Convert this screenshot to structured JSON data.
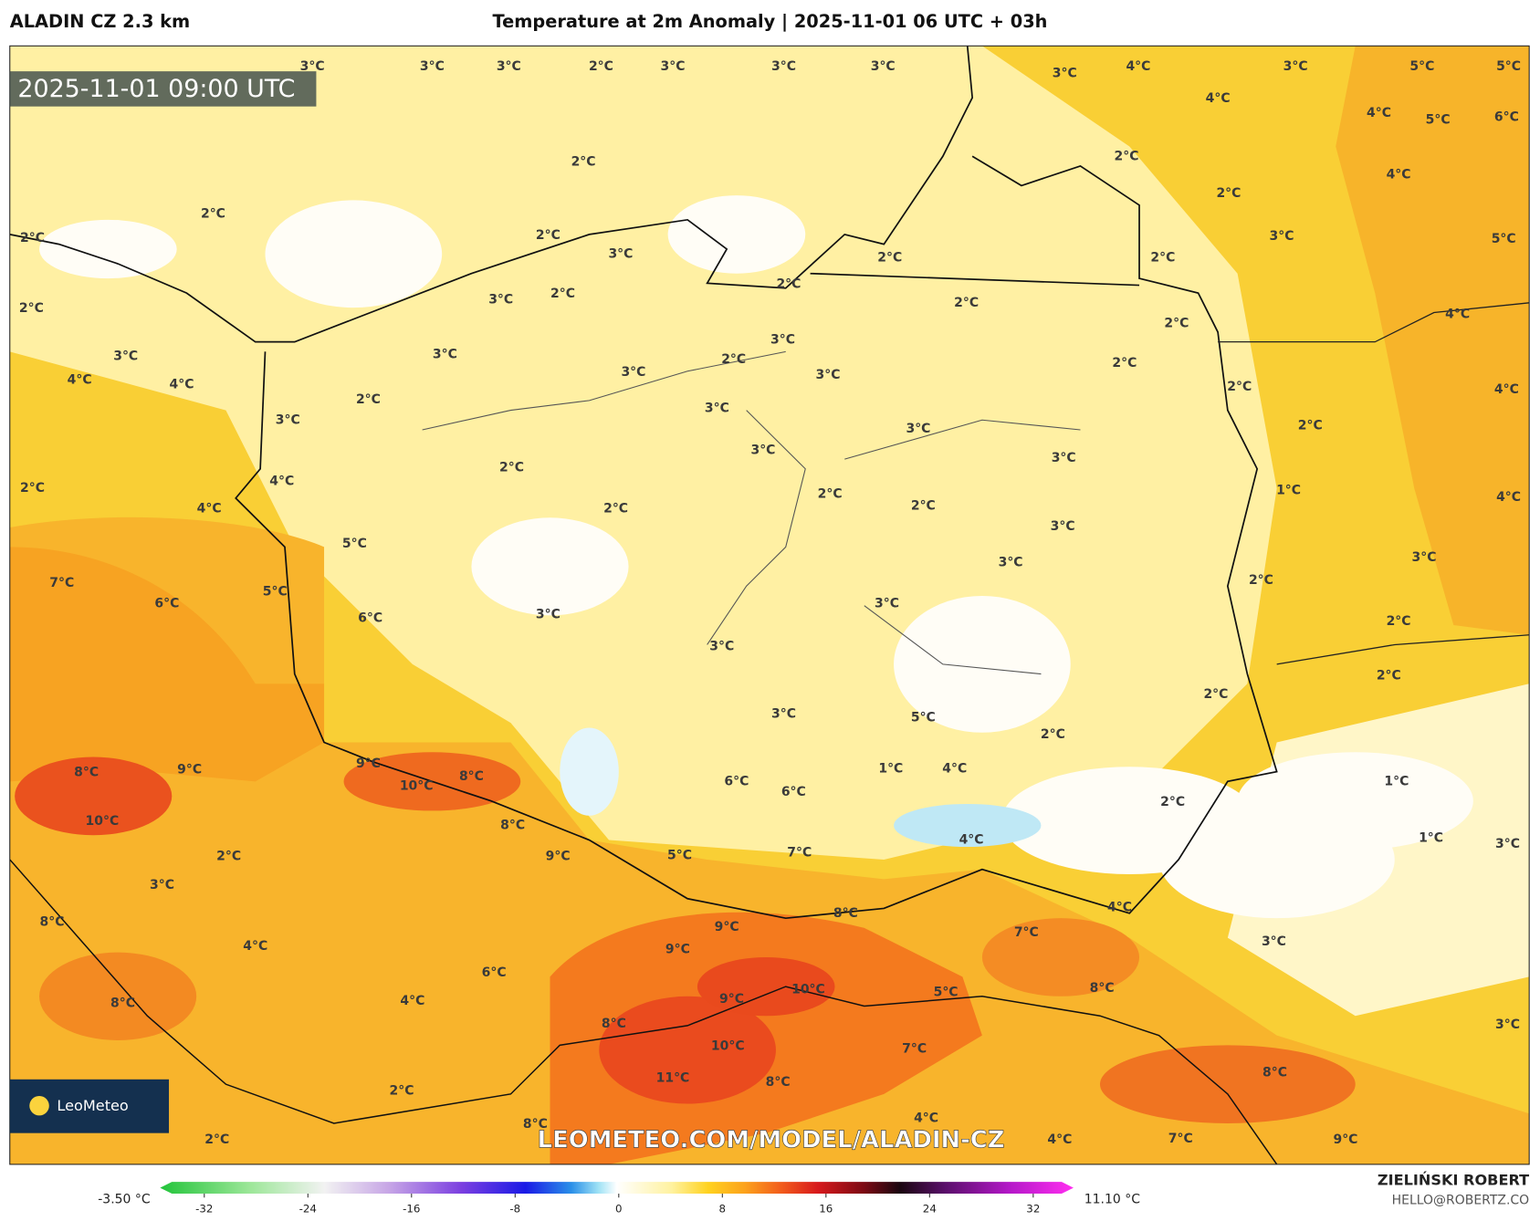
{
  "header": {
    "model": "ALADIN CZ 2.3 km",
    "title": "Temperature at 2m Anomaly | 2025-11-01 06 UTC + 03h"
  },
  "map": {
    "timestamp": "2025-11-01 09:00 UTC",
    "logo": "LeoMeteo",
    "watermark": "LEOMETEO.COM/MODEL/ALADIN-CZ",
    "labels": [
      "2°C",
      "2°C",
      "2°C",
      "2°C",
      "3°C",
      "3°C",
      "3°C",
      "2°C",
      "3°C",
      "3°C",
      "3°C",
      "3°C",
      "4°C",
      "4°C",
      "3°C",
      "5°C",
      "5°C",
      "4°C",
      "5°C",
      "6°C",
      "2°C",
      "2°C",
      "4°C",
      "3°C",
      "5°C",
      "2°C",
      "2°C",
      "2°C",
      "2°C",
      "3°C",
      "3°C",
      "2°C",
      "2°C",
      "4°C",
      "2°C",
      "3°C",
      "2°C",
      "3°C",
      "3°C",
      "2°C",
      "3°C",
      "4°C",
      "4°C",
      "3°C",
      "2°C",
      "2°C",
      "4°C",
      "2°C",
      "3°C",
      "3°C",
      "3°C",
      "3°C",
      "3°C",
      "2°C",
      "2°C",
      "3°C",
      "1°C",
      "4°C",
      "2°C",
      "4°C",
      "4°C",
      "5°C",
      "2°C",
      "2°C",
      "7°C",
      "6°C",
      "5°C",
      "6°C",
      "3°C",
      "3°C",
      "3°C",
      "3°C",
      "2°C",
      "3°C",
      "2°C",
      "2°C",
      "2°C",
      "2°C",
      "5°C",
      "3°C",
      "2°C",
      "1°C",
      "1°C",
      "3°C",
      "3°C",
      "3°C",
      "4°C",
      "7°C",
      "8°C",
      "8°C",
      "5°C",
      "10°C",
      "9°C",
      "10°C",
      "11°C",
      "8°C",
      "9°C",
      "9°C",
      "8°C",
      "9°C",
      "8°C",
      "10°C",
      "9°C",
      "8°C",
      "10°C",
      "9°C",
      "8°C",
      "2°C",
      "3°C",
      "8°C",
      "8°C",
      "4°C",
      "6°C",
      "4°C",
      "2°C",
      "2°C",
      "4°C",
      "7°C",
      "9°C",
      "4°C",
      "1°C",
      "4°C",
      "6°C",
      "6°C",
      "5°C",
      "7°C",
      "7°C",
      "8°C",
      "8°C",
      "4°C"
    ]
  },
  "colorbar": {
    "min_label": "-3.50 °C",
    "max_label": "11.10 °C",
    "ticks": [
      -32,
      -24,
      -16,
      -8,
      0,
      8,
      16,
      24,
      32
    ]
  },
  "credit": {
    "author": "ZIELIŃSKI ROBERT",
    "email": "HELLO@ROBERTZ.CO"
  }
}
